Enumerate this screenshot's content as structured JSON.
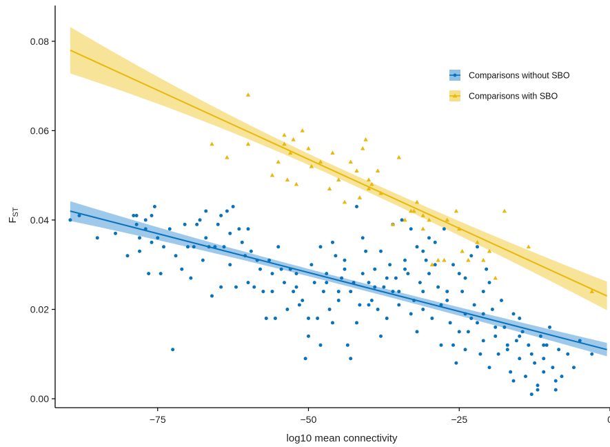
{
  "chart_data": {
    "type": "scatter",
    "xlabel": "log10 mean connectivity",
    "ylabel_main": "F",
    "ylabel_sub": "ST",
    "xlim": [
      -92,
      0
    ],
    "ylim": [
      -0.002,
      0.088
    ],
    "x_ticks": [
      -75,
      -50,
      -25,
      0
    ],
    "x_tick_labels": [
      "−75",
      "−50",
      "−25",
      "0"
    ],
    "y_ticks": [
      0.0,
      0.02,
      0.04,
      0.06,
      0.08
    ],
    "y_tick_labels": [
      "0.00",
      "0.02",
      "0.04",
      "0.06",
      "0.08"
    ],
    "grid": false,
    "legend_position": "top-right",
    "series": [
      {
        "name": "Comparisons without SBO",
        "color": "#0a72ba",
        "band_color": "#8ec0e6",
        "marker": "circle",
        "fit": {
          "x0": -89.5,
          "y0": 0.042,
          "x1": -0.5,
          "y1": 0.011,
          "ci_start": 0.0022,
          "ci_mid": 0.0008,
          "ci_end": 0.0015
        },
        "points": [
          [
            -89.5,
            0.04
          ],
          [
            -88,
            0.041
          ],
          [
            -85,
            0.036
          ],
          [
            -82,
            0.037
          ],
          [
            -80,
            0.032
          ],
          [
            -79,
            0.041
          ],
          [
            -78.5,
            0.041
          ],
          [
            -78,
            0.033
          ],
          [
            -78.5,
            0.039
          ],
          [
            -78,
            0.036
          ],
          [
            -77,
            0.04
          ],
          [
            -77,
            0.038
          ],
          [
            -76.5,
            0.028
          ],
          [
            -76,
            0.035
          ],
          [
            -76,
            0.041
          ],
          [
            -75.5,
            0.043
          ],
          [
            -75,
            0.036
          ],
          [
            -74.5,
            0.028
          ],
          [
            -74,
            0.034
          ],
          [
            -73,
            0.038
          ],
          [
            -72.5,
            0.011
          ],
          [
            -72,
            0.032
          ],
          [
            -71,
            0.029
          ],
          [
            -70.5,
            0.039
          ],
          [
            -70,
            0.034
          ],
          [
            -69.5,
            0.027
          ],
          [
            -69,
            0.034
          ],
          [
            -68.5,
            0.039
          ],
          [
            -68,
            0.04
          ],
          [
            -67.5,
            0.031
          ],
          [
            -67,
            0.036
          ],
          [
            -67,
            0.042
          ],
          [
            -66.5,
            0.034
          ],
          [
            -66,
            0.023
          ],
          [
            -65.5,
            0.034
          ],
          [
            -65,
            0.039
          ],
          [
            -64.5,
            0.041
          ],
          [
            -64.5,
            0.025
          ],
          [
            -64,
            0.034
          ],
          [
            -63.5,
            0.042
          ],
          [
            -63,
            0.037
          ],
          [
            -63,
            0.03
          ],
          [
            -62.5,
            0.043
          ],
          [
            -62,
            0.025
          ],
          [
            -61.5,
            0.038
          ],
          [
            -61,
            0.035
          ],
          [
            -60.5,
            0.032
          ],
          [
            -60,
            0.038
          ],
          [
            -59.5,
            0.033
          ],
          [
            -59,
            0.025
          ],
          [
            -58.5,
            0.031
          ],
          [
            -58,
            0.029
          ],
          [
            -57.5,
            0.024
          ],
          [
            -57,
            0.018
          ],
          [
            -56.5,
            0.031
          ],
          [
            -56,
            0.028
          ],
          [
            -55.5,
            0.018
          ],
          [
            -55,
            0.034
          ],
          [
            -54.5,
            0.029
          ],
          [
            -54,
            0.026
          ],
          [
            -53.5,
            0.02
          ],
          [
            -53,
            0.029
          ],
          [
            -52.5,
            0.024
          ],
          [
            -52,
            0.025
          ],
          [
            -51.5,
            0.021
          ],
          [
            -51,
            0.022
          ],
          [
            -50.5,
            0.009
          ],
          [
            -50,
            0.014
          ],
          [
            -49.5,
            0.03
          ],
          [
            -49,
            0.026
          ],
          [
            -48.5,
            0.018
          ],
          [
            -48,
            0.012
          ],
          [
            -47.5,
            0.024
          ],
          [
            -47,
            0.028
          ],
          [
            -46.5,
            0.02
          ],
          [
            -46,
            0.017
          ],
          [
            -45.5,
            0.032
          ],
          [
            -45,
            0.024
          ],
          [
            -44.5,
            0.027
          ],
          [
            -44,
            0.029
          ],
          [
            -43.5,
            0.012
          ],
          [
            -43,
            0.009
          ],
          [
            -42.5,
            0.026
          ],
          [
            -42,
            0.017
          ],
          [
            -41.5,
            0.021
          ],
          [
            -41,
            0.036
          ],
          [
            -40.5,
            0.033
          ],
          [
            -40,
            0.026
          ],
          [
            -39.5,
            0.022
          ],
          [
            -39,
            0.029
          ],
          [
            -38.5,
            0.02
          ],
          [
            -38,
            0.014
          ],
          [
            -37.5,
            0.025
          ],
          [
            -37,
            0.018
          ],
          [
            -36.5,
            0.03
          ],
          [
            -36,
            0.024
          ],
          [
            -35.5,
            0.027
          ],
          [
            -35,
            0.021
          ],
          [
            -34.5,
            0.04
          ],
          [
            -34,
            0.031
          ],
          [
            -33.5,
            0.028
          ],
          [
            -33,
            0.038
          ],
          [
            -32.5,
            0.022
          ],
          [
            -32,
            0.034
          ],
          [
            -31.5,
            0.026
          ],
          [
            -31,
            0.024
          ],
          [
            -30.5,
            0.031
          ],
          [
            -30,
            0.028
          ],
          [
            -29.5,
            0.018
          ],
          [
            -29,
            0.035
          ],
          [
            -28.5,
            0.025
          ],
          [
            -28,
            0.021
          ],
          [
            -27.5,
            0.038
          ],
          [
            -27,
            0.024
          ],
          [
            -26.5,
            0.017
          ],
          [
            -26,
            0.012
          ],
          [
            -25.5,
            0.008
          ],
          [
            -25,
            0.028
          ],
          [
            -24.5,
            0.024
          ],
          [
            -24,
            0.019
          ],
          [
            -23.5,
            0.015
          ],
          [
            -23,
            0.032
          ],
          [
            -22.5,
            0.021
          ],
          [
            -22,
            0.017
          ],
          [
            -21.5,
            0.01
          ],
          [
            -21,
            0.019
          ],
          [
            -20.5,
            0.029
          ],
          [
            -20,
            0.026
          ],
          [
            -19.5,
            0.02
          ],
          [
            -19,
            0.014
          ],
          [
            -18.5,
            0.01
          ],
          [
            -18,
            0.022
          ],
          [
            -17.5,
            0.016
          ],
          [
            -17,
            0.011
          ],
          [
            -16.5,
            0.006
          ],
          [
            -16,
            0.019
          ],
          [
            -15.5,
            0.013
          ],
          [
            -15,
            0.009
          ],
          [
            -14.5,
            0.015
          ],
          [
            -14,
            0.005
          ],
          [
            -13.5,
            0.012
          ],
          [
            -13,
            0.001
          ],
          [
            -12.5,
            0.008
          ],
          [
            -12,
            0.003
          ],
          [
            -11.5,
            0.014
          ],
          [
            -11,
            0.009
          ],
          [
            -10.5,
            0.012
          ],
          [
            -10,
            0.016
          ],
          [
            -9.5,
            0.007
          ],
          [
            -9,
            0.002
          ],
          [
            -8.5,
            0.011
          ],
          [
            -8,
            0.005
          ],
          [
            -7,
            0.01
          ],
          [
            -6,
            0.007
          ],
          [
            -5,
            0.013
          ],
          [
            -3,
            0.01
          ],
          [
            -46,
            0.035
          ],
          [
            -44,
            0.031
          ],
          [
            -42,
            0.043
          ],
          [
            -38,
            0.033
          ],
          [
            -36,
            0.039
          ],
          [
            -34,
            0.029
          ],
          [
            -30,
            0.036
          ],
          [
            -26,
            0.03
          ],
          [
            -24,
            0.027
          ],
          [
            -22,
            0.034
          ],
          [
            -48,
            0.034
          ],
          [
            -52,
            0.028
          ],
          [
            -56,
            0.024
          ],
          [
            -60,
            0.026
          ],
          [
            -50,
            0.018
          ],
          [
            -40,
            0.021
          ],
          [
            -32,
            0.015
          ],
          [
            -28,
            0.012
          ],
          [
            -24,
            0.011
          ],
          [
            -20,
            0.007
          ],
          [
            -16,
            0.004
          ],
          [
            -12,
            0.002
          ],
          [
            -43,
            0.024
          ],
          [
            -37,
            0.027
          ],
          [
            -33,
            0.019
          ],
          [
            -27,
            0.022
          ],
          [
            -23,
            0.018
          ],
          [
            -19,
            0.016
          ],
          [
            -15,
            0.014
          ],
          [
            -11,
            0.006
          ],
          [
            -45,
            0.022
          ],
          [
            -41,
            0.028
          ],
          [
            -35,
            0.024
          ],
          [
            -31,
            0.02
          ],
          [
            -29,
            0.03
          ],
          [
            -25,
            0.015
          ],
          [
            -21,
            0.013
          ],
          [
            -17,
            0.012
          ],
          [
            -13,
            0.01
          ],
          [
            -9,
            0.004
          ],
          [
            -47,
            0.026
          ],
          [
            -39,
            0.025
          ],
          [
            -31,
            0.033
          ],
          [
            -21,
            0.024
          ],
          [
            -15,
            0.018
          ],
          [
            -11,
            0.012
          ]
        ]
      },
      {
        "name": "Comparisons with SBO",
        "color": "#e8b80c",
        "band_color": "#f6df86",
        "marker": "triangle",
        "fit": {
          "x0": -89.5,
          "y0": 0.078,
          "x1": -0.5,
          "y1": 0.023,
          "ci_start": 0.0052,
          "ci_mid": 0.0012,
          "ci_end": 0.0032
        },
        "points": [
          [
            -66,
            0.057
          ],
          [
            -63.5,
            0.054
          ],
          [
            -60,
            0.068
          ],
          [
            -60,
            0.057
          ],
          [
            -56,
            0.05
          ],
          [
            -55,
            0.053
          ],
          [
            -54,
            0.059
          ],
          [
            -54,
            0.057
          ],
          [
            -53.5,
            0.049
          ],
          [
            -53,
            0.055
          ],
          [
            -52.5,
            0.058
          ],
          [
            -52,
            0.048
          ],
          [
            -51,
            0.06
          ],
          [
            -50,
            0.056
          ],
          [
            -49.5,
            0.052
          ],
          [
            -48,
            0.053
          ],
          [
            -46.5,
            0.047
          ],
          [
            -46,
            0.055
          ],
          [
            -45,
            0.049
          ],
          [
            -44,
            0.044
          ],
          [
            -43,
            0.053
          ],
          [
            -42,
            0.051
          ],
          [
            -41.5,
            0.045
          ],
          [
            -41,
            0.056
          ],
          [
            -40.5,
            0.058
          ],
          [
            -40,
            0.049
          ],
          [
            -39.5,
            0.048
          ],
          [
            -38.5,
            0.051
          ],
          [
            -38,
            0.046
          ],
          [
            -36,
            0.039
          ],
          [
            -35,
            0.054
          ],
          [
            -34,
            0.04
          ],
          [
            -33,
            0.042
          ],
          [
            -32.5,
            0.042
          ],
          [
            -32,
            0.044
          ],
          [
            -31,
            0.041
          ],
          [
            -30,
            0.04
          ],
          [
            -29.5,
            0.03
          ],
          [
            -28.5,
            0.031
          ],
          [
            -27.5,
            0.031
          ],
          [
            -27,
            0.04
          ],
          [
            -25.5,
            0.042
          ],
          [
            -24.5,
            0.033
          ],
          [
            -23.5,
            0.031
          ],
          [
            -22,
            0.035
          ],
          [
            -21,
            0.031
          ],
          [
            -20,
            0.033
          ],
          [
            -19,
            0.027
          ],
          [
            -17.5,
            0.042
          ],
          [
            -13.5,
            0.034
          ],
          [
            -3,
            0.024
          ],
          [
            -40,
            0.047
          ],
          [
            -31,
            0.038
          ],
          [
            -25,
            0.038
          ]
        ]
      }
    ]
  }
}
